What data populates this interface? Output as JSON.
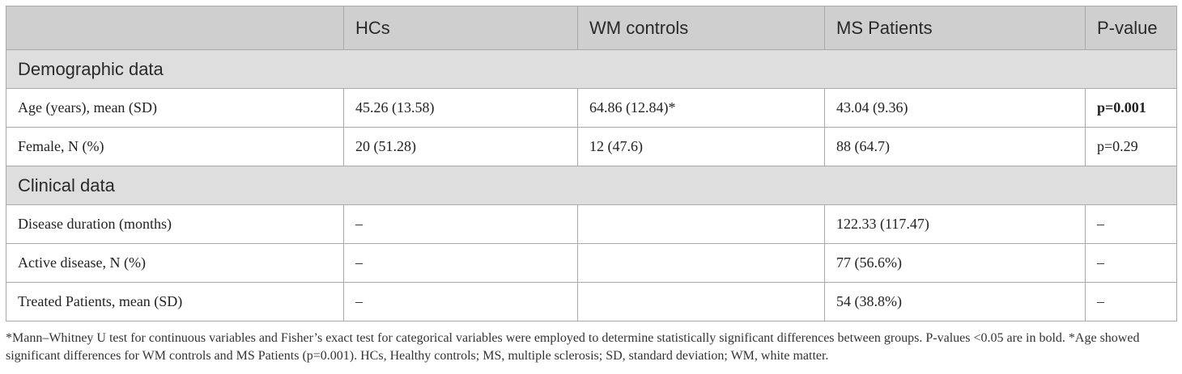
{
  "table": {
    "headers": [
      "",
      "HCs",
      "WM controls",
      "MS Patients",
      "P-value"
    ],
    "sections": [
      {
        "title": "Demographic data",
        "rows": [
          {
            "label": "Age (years), mean (SD)",
            "hcs": "45.26 (13.58)",
            "wm": "64.86 (12.84)*",
            "ms": "43.04 (9.36)",
            "p": "p=0.001"
          },
          {
            "label": "Female, N (%)",
            "hcs": "20 (51.28)",
            "wm": "12 (47.6)",
            "ms": "88 (64.7)",
            "p": "p=0.29"
          }
        ]
      },
      {
        "title": "Clinical data",
        "rows": [
          {
            "label": "Disease duration (months)",
            "hcs": "–",
            "wm": "",
            "ms": "122.33 (117.47)",
            "p": "–"
          },
          {
            "label": "Active disease, N (%)",
            "hcs": "–",
            "wm": "",
            "ms": "77 (56.6%)",
            "p": "–"
          },
          {
            "label": "Treated Patients, mean (SD)",
            "hcs": "–",
            "wm": "",
            "ms": "54 (38.8%)",
            "p": "–"
          }
        ]
      }
    ]
  },
  "footnote": {
    "text": "*Mann–Whitney U test for continuous variables and Fisher’s exact test for categorical variables were employed to determine statistically significant differences between groups. P-values <0.05 are in bold. *Age showed significant differences for WM controls and MS Patients (p=0.001). HCs, Healthy controls; MS, multiple sclerosis; SD, standard deviation; WM, white matter."
  }
}
